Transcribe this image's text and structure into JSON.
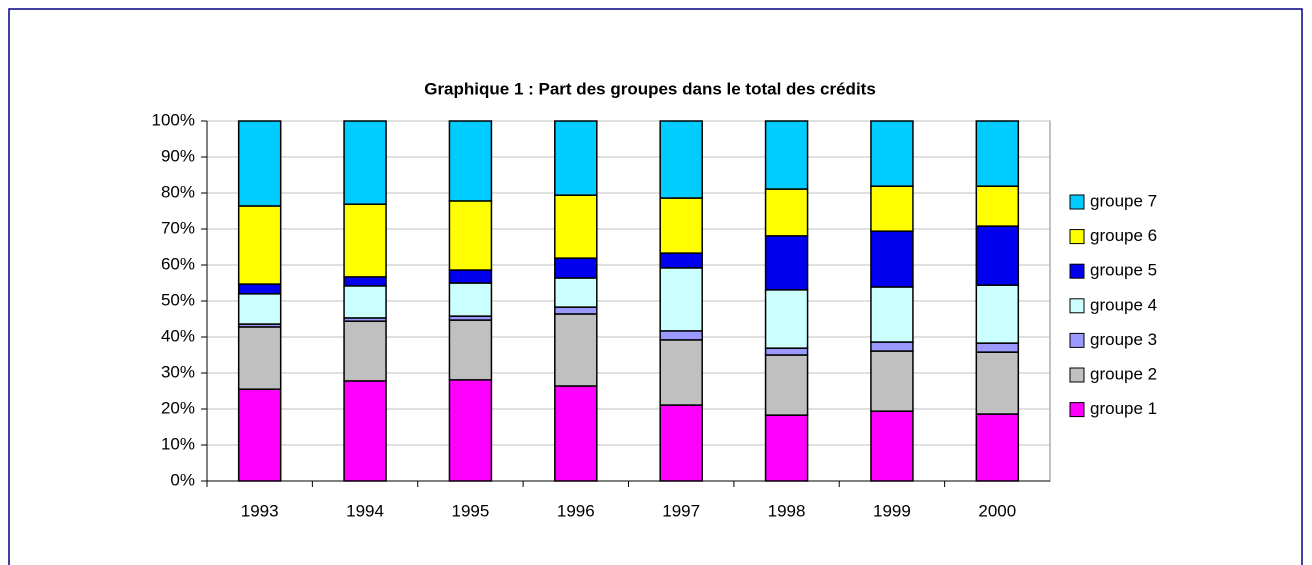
{
  "chart_data": {
    "type": "stacked_bar",
    "title": "Graphique 1 : Part des groupes dans le total des crédits",
    "categories": [
      "1993",
      "1994",
      "1995",
      "1996",
      "1997",
      "1998",
      "1999",
      "2000"
    ],
    "series": [
      {
        "name": "groupe 1",
        "color": "#ff00ff",
        "values": [
          25.5,
          27.8,
          28.1,
          26.4,
          21.1,
          18.3,
          19.4,
          18.6
        ]
      },
      {
        "name": "groupe 2",
        "color": "#c0c0c0",
        "values": [
          17.3,
          16.6,
          16.6,
          20,
          18.1,
          16.7,
          16.7,
          17.2
        ]
      },
      {
        "name": "groupe 3",
        "color": "#9999ff",
        "values": [
          0.8,
          0.9,
          1.1,
          1.9,
          2.5,
          1.9,
          2.5,
          2.5
        ]
      },
      {
        "name": "groupe 4",
        "color": "#ccffff",
        "values": [
          8.4,
          8.9,
          9.2,
          8.1,
          17.5,
          16.2,
          15.3,
          16.1
        ]
      },
      {
        "name": "groupe 5",
        "color": "#0000ee",
        "values": [
          2.7,
          2.5,
          3.6,
          5.5,
          4.1,
          15,
          15.5,
          16.4
        ]
      },
      {
        "name": "groupe 6",
        "color": "#ffff00",
        "values": [
          21.7,
          20.2,
          19.2,
          17.5,
          15.3,
          13,
          12.5,
          11.1
        ]
      },
      {
        "name": "groupe 7",
        "color": "#00ccff",
        "values": [
          23.6,
          23.1,
          22.2,
          20.6,
          21.4,
          18.9,
          18.1,
          18.1
        ]
      }
    ],
    "ylim": [
      0,
      100
    ],
    "yticks": [
      {
        "value": 0,
        "label": "0%"
      },
      {
        "value": 10,
        "label": "10%"
      },
      {
        "value": 20,
        "label": "20%"
      },
      {
        "value": 30,
        "label": "30%"
      },
      {
        "value": 40,
        "label": "40%"
      },
      {
        "value": 50,
        "label": "50%"
      },
      {
        "value": 60,
        "label": "60%"
      },
      {
        "value": 70,
        "label": "70%"
      },
      {
        "value": 80,
        "label": "80%"
      },
      {
        "value": 90,
        "label": "90%"
      },
      {
        "value": 100,
        "label": "100%"
      }
    ],
    "grid": true,
    "legend": "right"
  }
}
